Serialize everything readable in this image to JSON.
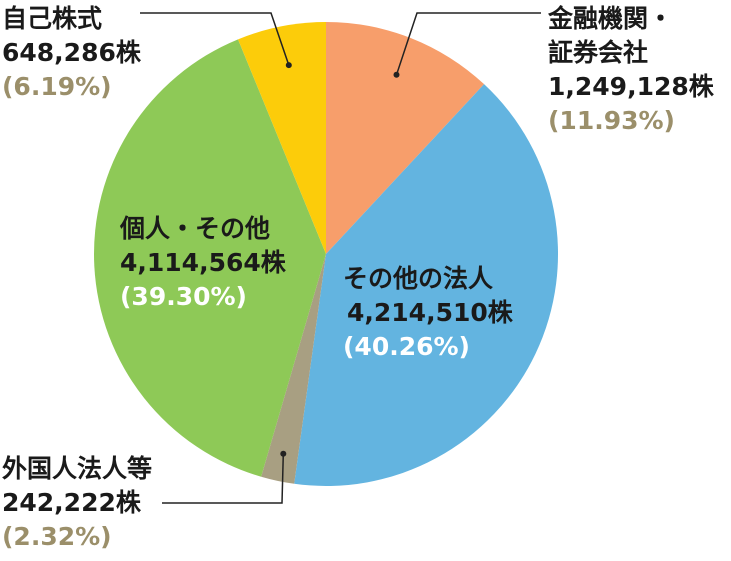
{
  "chart_data": {
    "type": "pie",
    "start_angle_deg": 0,
    "direction": "clockwise",
    "slices": [
      {
        "name_lines": [
          "金融機関・",
          "証券会社"
        ],
        "shares": "1,249,128株",
        "percent_label": "(11.93%)",
        "value": 11.93,
        "color": "#f79e6b"
      },
      {
        "name_lines": [
          "その他の法人"
        ],
        "shares": "4,214,510株",
        "percent_label": "(40.26%)",
        "value": 40.26,
        "color": "#63b4e0"
      },
      {
        "name_lines": [
          "外国人法人等"
        ],
        "shares": "242,222株",
        "percent_label": "(2.32%)",
        "value": 2.32,
        "color": "#a89f82"
      },
      {
        "name_lines": [
          "個人・その他"
        ],
        "shares": "4,114,564株",
        "percent_label": "(39.30%)",
        "value": 39.3,
        "color": "#8ec957"
      },
      {
        "name_lines": [
          "自己株式"
        ],
        "shares": "648,286株",
        "percent_label": "(6.19%)",
        "value": 6.19,
        "color": "#fccc0a"
      }
    ]
  }
}
